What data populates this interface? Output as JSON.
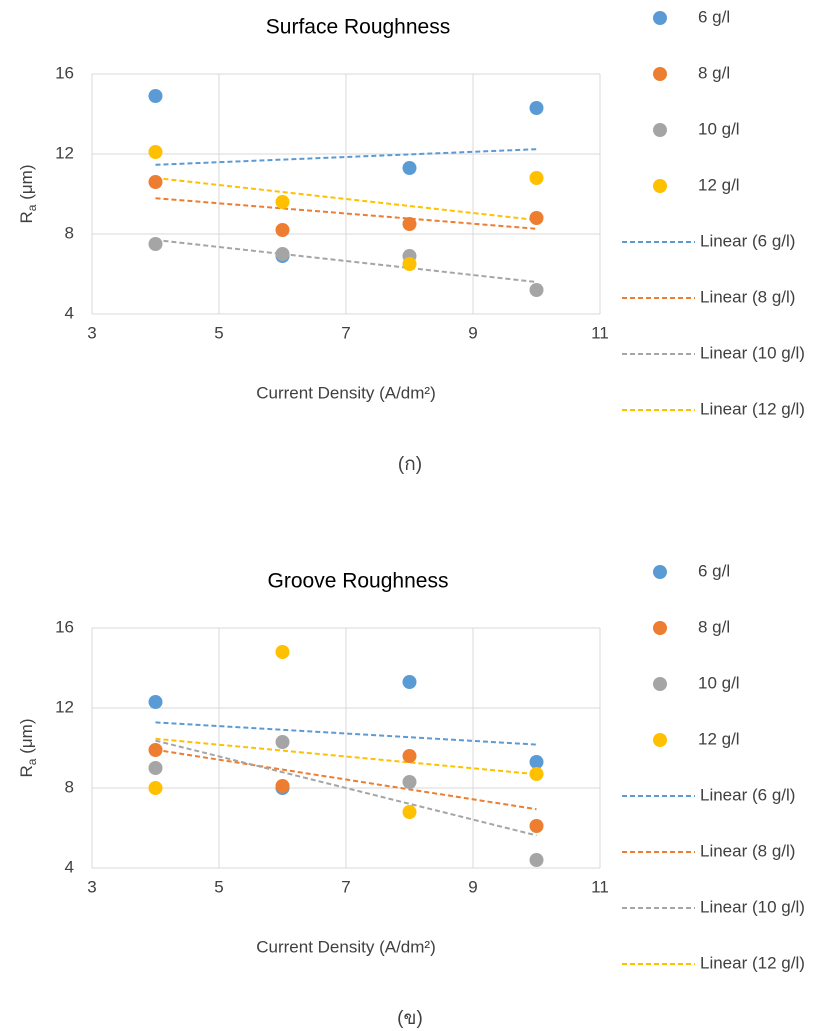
{
  "chart_data": [
    {
      "type": "scatter",
      "title": "Surface Roughness",
      "x_label": "Current Density (A/dm²)",
      "y_label": [
        "R",
        "a",
        " (μm)"
      ],
      "caption": "(ก)",
      "x": [
        4,
        6,
        8,
        10
      ],
      "xlim": [
        3,
        11
      ],
      "xticks": [
        3,
        5,
        7,
        9,
        11
      ],
      "ylim": [
        4,
        16
      ],
      "yticks": [
        4,
        8,
        12,
        16
      ],
      "grid": true,
      "legend": "right",
      "series": [
        {
          "name": "6 g/l",
          "color": "#5b9bd5",
          "values": [
            14.9,
            6.9,
            11.3,
            14.3
          ],
          "trendline": "Linear (6 g/l)"
        },
        {
          "name": "8 g/l",
          "color": "#ed7d31",
          "values": [
            10.6,
            8.2,
            8.5,
            8.8
          ],
          "trendline": "Linear (8 g/l)"
        },
        {
          "name": "10 g/l",
          "color": "#a5a5a5",
          "values": [
            7.5,
            7.0,
            6.9,
            5.2
          ],
          "trendline": "Linear (10 g/l)"
        },
        {
          "name": "12 g/l",
          "color": "#ffc000",
          "values": [
            12.1,
            9.6,
            6.5,
            10.8
          ],
          "trendline": "Linear (12 g/l)"
        }
      ]
    },
    {
      "type": "scatter",
      "title": "Groove Roughness",
      "x_label": "Current Density (A/dm²)",
      "y_label": [
        "R",
        "a",
        " (μm)"
      ],
      "caption": "(ข)",
      "x": [
        4,
        6,
        8,
        10
      ],
      "xlim": [
        3,
        11
      ],
      "xticks": [
        3,
        5,
        7,
        9,
        11
      ],
      "ylim": [
        4,
        16
      ],
      "yticks": [
        4,
        8,
        12,
        16
      ],
      "grid": true,
      "legend": "right",
      "series": [
        {
          "name": "6 g/l",
          "color": "#5b9bd5",
          "values": [
            12.3,
            8.0,
            13.3,
            9.3
          ],
          "trendline": "Linear (6 g/l)"
        },
        {
          "name": "8 g/l",
          "color": "#ed7d31",
          "values": [
            9.9,
            8.1,
            9.6,
            6.1
          ],
          "trendline": "Linear (8 g/l)"
        },
        {
          "name": "10 g/l",
          "color": "#a5a5a5",
          "values": [
            9.0,
            10.3,
            8.3,
            4.4
          ],
          "trendline": "Linear (10 g/l)"
        },
        {
          "name": "12 g/l",
          "color": "#ffc000",
          "values": [
            8.0,
            14.8,
            6.8,
            8.7
          ],
          "trendline": "Linear (12 g/l)"
        }
      ]
    }
  ]
}
